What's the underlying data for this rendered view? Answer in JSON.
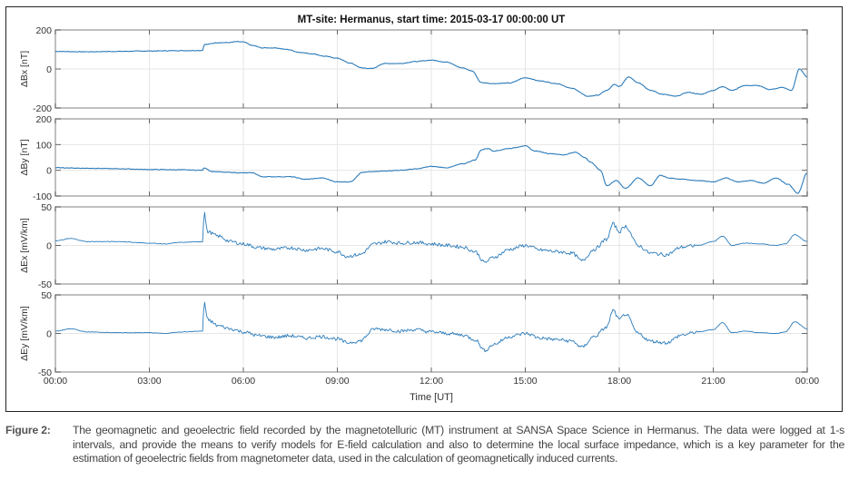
{
  "figure": {
    "label": "Figure 2:",
    "caption": "The geomagnetic and geoelectric field recorded by the magnetotelluric (MT) instrument at SANSA Space Science in Hermanus. The data were logged at 1-s intervals, and provide the means to verify models for E-field calculation and also to determine the local surface impedance, which is a key parameter for the estimation of geoelectric fields from magnetometer data, used in the calculation of geomagnetically induced currents."
  },
  "colors": {
    "line": "#2b7bba",
    "grid": "#e6e6e6",
    "axis": "#b0b0b0",
    "text": "#333333"
  },
  "chart_data": {
    "type": "line",
    "title": "MT-site: Hermanus, start time: 2015-03-17 00:00:00 UT",
    "xlabel": "Time [UT]",
    "xlim": [
      0,
      24
    ],
    "xticks": [
      0,
      3,
      6,
      9,
      12,
      15,
      18,
      21,
      24
    ],
    "xtick_labels": [
      "00:00",
      "03:00",
      "06:00",
      "09:00",
      "12:00",
      "15:00",
      "18:00",
      "21:00",
      "00:00"
    ],
    "grid": true,
    "panels": [
      {
        "name": "Bx",
        "ylabel": "ΔBx [nT]",
        "ylim": [
          -200,
          200
        ],
        "yticks": [
          -200,
          0,
          200
        ],
        "x": [
          0,
          1,
          2,
          3,
          4,
          4.7,
          4.75,
          5.2,
          5.5,
          5.8,
          6.0,
          6.3,
          6.6,
          7.0,
          7.4,
          7.8,
          8.2,
          8.6,
          9.0,
          9.4,
          9.8,
          10.1,
          10.5,
          11.0,
          11.5,
          12.0,
          12.5,
          13.0,
          13.3,
          13.6,
          14.0,
          14.5,
          15.0,
          15.5,
          16.0,
          16.5,
          17.0,
          17.3,
          17.6,
          17.85,
          18.0,
          18.3,
          18.6,
          19.0,
          19.4,
          19.8,
          20.2,
          20.6,
          21.0,
          21.3,
          21.6,
          22.0,
          22.4,
          22.8,
          23.2,
          23.5,
          23.75,
          24.0
        ],
        "y": [
          90,
          88,
          90,
          92,
          94,
          95,
          125,
          135,
          135,
          140,
          138,
          120,
          108,
          108,
          100,
          85,
          78,
          65,
          55,
          30,
          5,
          2,
          28,
          28,
          38,
          45,
          35,
          5,
          -10,
          -70,
          -75,
          -72,
          -45,
          -62,
          -75,
          -100,
          -140,
          -135,
          -110,
          -80,
          -90,
          -40,
          -70,
          -110,
          -130,
          -140,
          -120,
          -130,
          -110,
          -90,
          -110,
          -85,
          -85,
          -105,
          -95,
          -110,
          0,
          -40
        ]
      },
      {
        "name": "By",
        "ylabel": "ΔBy [nT]",
        "ylim": [
          -100,
          200
        ],
        "yticks": [
          -100,
          0,
          100,
          200
        ],
        "x": [
          0,
          1,
          2,
          3,
          4,
          4.7,
          4.75,
          5.0,
          5.5,
          6.0,
          6.3,
          6.6,
          7.0,
          7.5,
          8.0,
          8.5,
          9.0,
          9.4,
          9.8,
          10.2,
          10.6,
          11.0,
          11.5,
          12.0,
          12.5,
          13.0,
          13.4,
          13.6,
          13.8,
          14.0,
          14.5,
          15.0,
          15.3,
          15.8,
          16.2,
          16.6,
          16.9,
          17.1,
          17.4,
          17.6,
          17.9,
          18.2,
          18.6,
          19.0,
          19.3,
          19.6,
          20.0,
          20.5,
          21.0,
          21.4,
          21.8,
          22.2,
          22.6,
          23.0,
          23.4,
          23.7,
          24.0
        ],
        "y": [
          10,
          8,
          6,
          3,
          2,
          0,
          10,
          -5,
          -8,
          -10,
          -10,
          -25,
          -25,
          -25,
          -35,
          -30,
          -45,
          -45,
          -8,
          -5,
          -2,
          0,
          5,
          15,
          10,
          25,
          40,
          80,
          85,
          75,
          85,
          95,
          75,
          65,
          60,
          70,
          50,
          30,
          0,
          -60,
          -40,
          -70,
          -30,
          -60,
          -20,
          -30,
          -35,
          -40,
          -45,
          -30,
          -45,
          -40,
          -50,
          -30,
          -55,
          -90,
          -10
        ]
      },
      {
        "name": "Ex",
        "ylabel": "ΔEx [mV/km]",
        "ylim": [
          -50,
          50
        ],
        "yticks": [
          -50,
          0,
          50
        ],
        "x": [
          0,
          0.5,
          1.0,
          2.0,
          3.0,
          3.5,
          4.0,
          4.7,
          4.75,
          4.85,
          5.2,
          5.6,
          6.0,
          6.5,
          7.0,
          7.5,
          8.0,
          8.5,
          9.0,
          9.3,
          9.7,
          10.2,
          10.6,
          11.0,
          11.5,
          12.0,
          12.5,
          13.0,
          13.4,
          13.7,
          14.0,
          14.5,
          15.0,
          15.5,
          16.0,
          16.5,
          16.8,
          17.2,
          17.6,
          17.8,
          18.0,
          18.2,
          18.6,
          19.0,
          19.5,
          20.0,
          20.5,
          21.0,
          21.3,
          21.6,
          22.0,
          22.5,
          23.0,
          23.3,
          23.6,
          24.0
        ],
        "y": [
          6,
          9,
          5,
          5,
          3,
          2,
          4,
          5,
          44,
          18,
          12,
          5,
          2,
          -3,
          -5,
          -3,
          -6,
          -4,
          -8,
          -14,
          -12,
          2,
          5,
          3,
          4,
          2,
          0,
          -2,
          -8,
          -22,
          -15,
          -5,
          0,
          -6,
          -8,
          -10,
          -20,
          -5,
          8,
          28,
          18,
          25,
          0,
          -10,
          -12,
          -2,
          0,
          5,
          12,
          0,
          3,
          2,
          0,
          2,
          14,
          5
        ]
      },
      {
        "name": "Ey",
        "ylabel": "ΔEy [mV/km]",
        "ylim": [
          -50,
          50
        ],
        "yticks": [
          -50,
          0,
          50
        ],
        "x": [
          0,
          0.5,
          1.0,
          2.0,
          3.0,
          3.5,
          4.0,
          4.7,
          4.75,
          4.85,
          5.2,
          5.6,
          6.0,
          6.5,
          7.0,
          7.5,
          8.0,
          8.5,
          9.0,
          9.3,
          9.7,
          10.2,
          10.6,
          11.0,
          11.5,
          12.0,
          12.5,
          13.0,
          13.4,
          13.7,
          14.0,
          14.5,
          15.0,
          15.5,
          16.0,
          16.5,
          16.8,
          17.2,
          17.6,
          17.8,
          18.0,
          18.2,
          18.6,
          19.0,
          19.5,
          20.0,
          20.5,
          21.0,
          21.3,
          21.6,
          22.0,
          22.5,
          23.0,
          23.3,
          23.6,
          24.0
        ],
        "y": [
          3,
          6,
          2,
          1,
          1,
          0,
          2,
          3,
          42,
          18,
          10,
          6,
          2,
          -3,
          -5,
          -3,
          -6,
          -4,
          -7,
          -12,
          -10,
          6,
          5,
          3,
          5,
          2,
          0,
          -2,
          -8,
          -22,
          -14,
          -4,
          0,
          -6,
          -8,
          -10,
          -18,
          -4,
          8,
          30,
          18,
          25,
          0,
          -10,
          -12,
          -2,
          2,
          5,
          14,
          1,
          3,
          1,
          0,
          2,
          15,
          6
        ]
      }
    ]
  }
}
